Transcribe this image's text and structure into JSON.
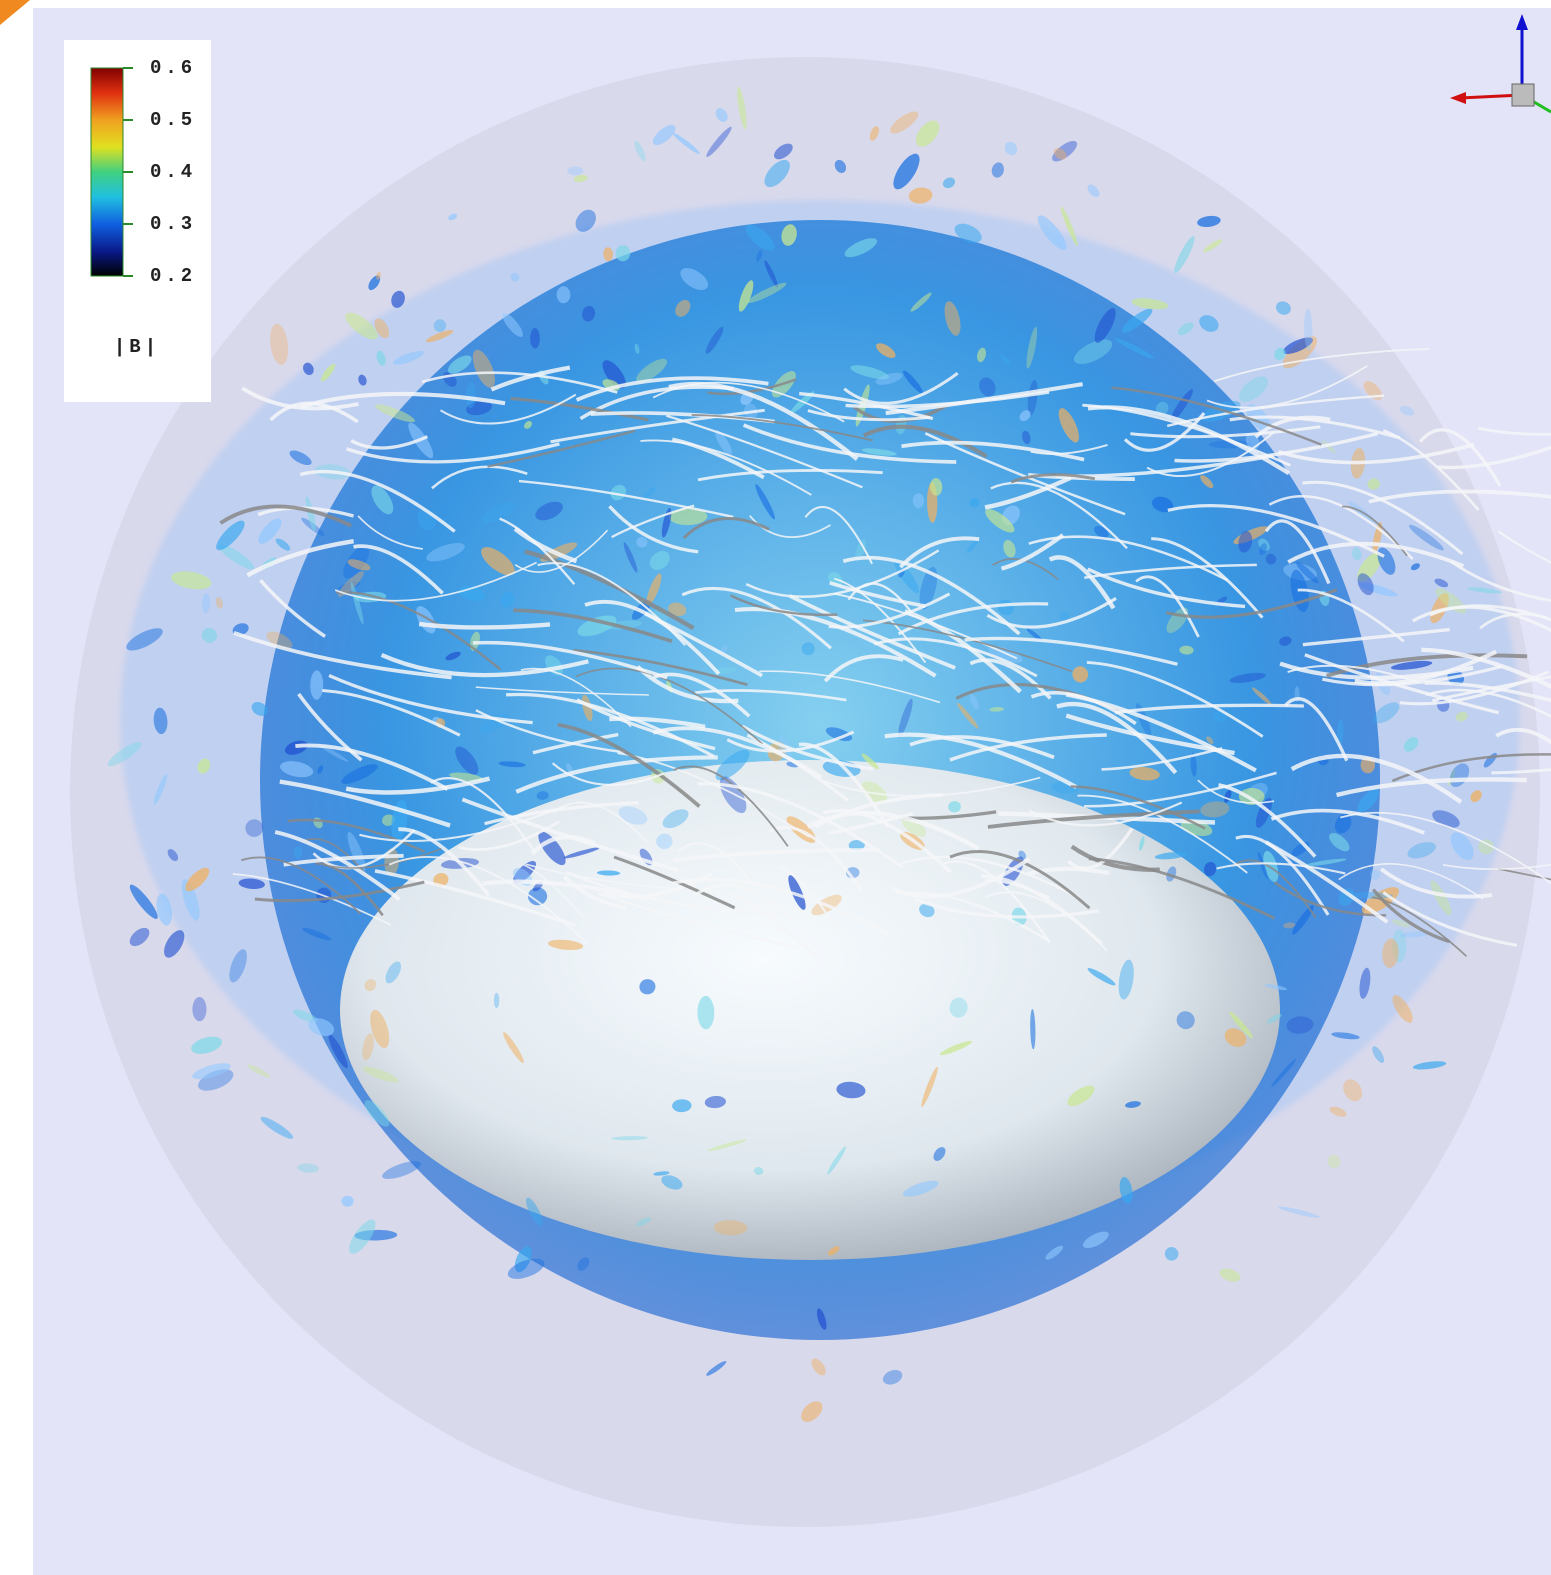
{
  "colorbar": {
    "title": "|B|",
    "range": [
      0.2,
      0.6
    ],
    "ticks": [
      0.6,
      0.5,
      0.4,
      0.3,
      0.2
    ]
  }
}
